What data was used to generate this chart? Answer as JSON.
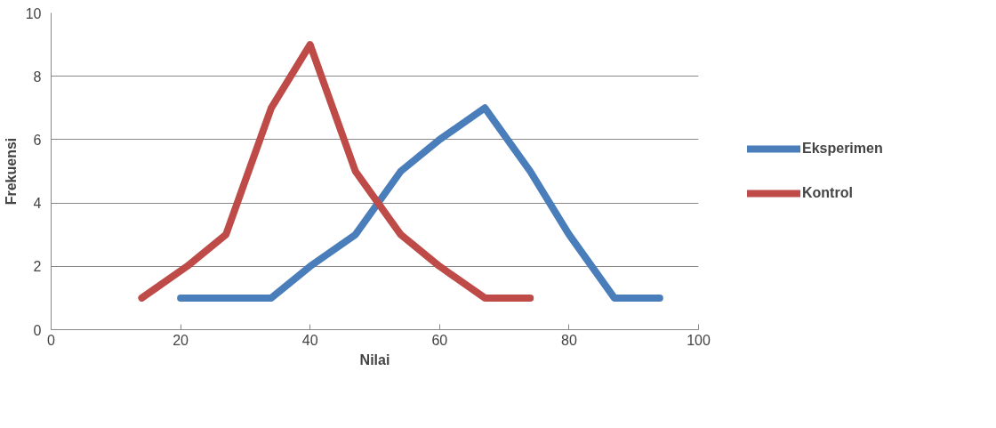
{
  "chart_data": {
    "type": "line",
    "xlabel": "Nilai",
    "ylabel": "Frekuensi",
    "xlim": [
      0,
      100
    ],
    "xticks": [
      0,
      20,
      40,
      60,
      80,
      100
    ],
    "ylim": [
      0,
      10
    ],
    "yticks": [
      0,
      2,
      4,
      6,
      8,
      10
    ],
    "grid": "y",
    "legend": "right",
    "marker": "none",
    "line_style": "solid",
    "series": [
      {
        "name": "Eksperimen",
        "color": "#4a7ebb",
        "x": [
          20,
          27,
          34,
          40,
          47,
          54,
          60,
          67,
          74,
          80,
          87,
          94
        ],
        "values": [
          1,
          1,
          1,
          2,
          3,
          5,
          6,
          7,
          5,
          3,
          1,
          1
        ]
      },
      {
        "name": "Kontrol",
        "color": "#be4b48",
        "x": [
          14,
          21,
          27,
          34,
          40,
          47,
          54,
          60,
          67,
          74
        ],
        "values": [
          1,
          2,
          3,
          7,
          9,
          5,
          3,
          2,
          1,
          1
        ]
      }
    ]
  }
}
